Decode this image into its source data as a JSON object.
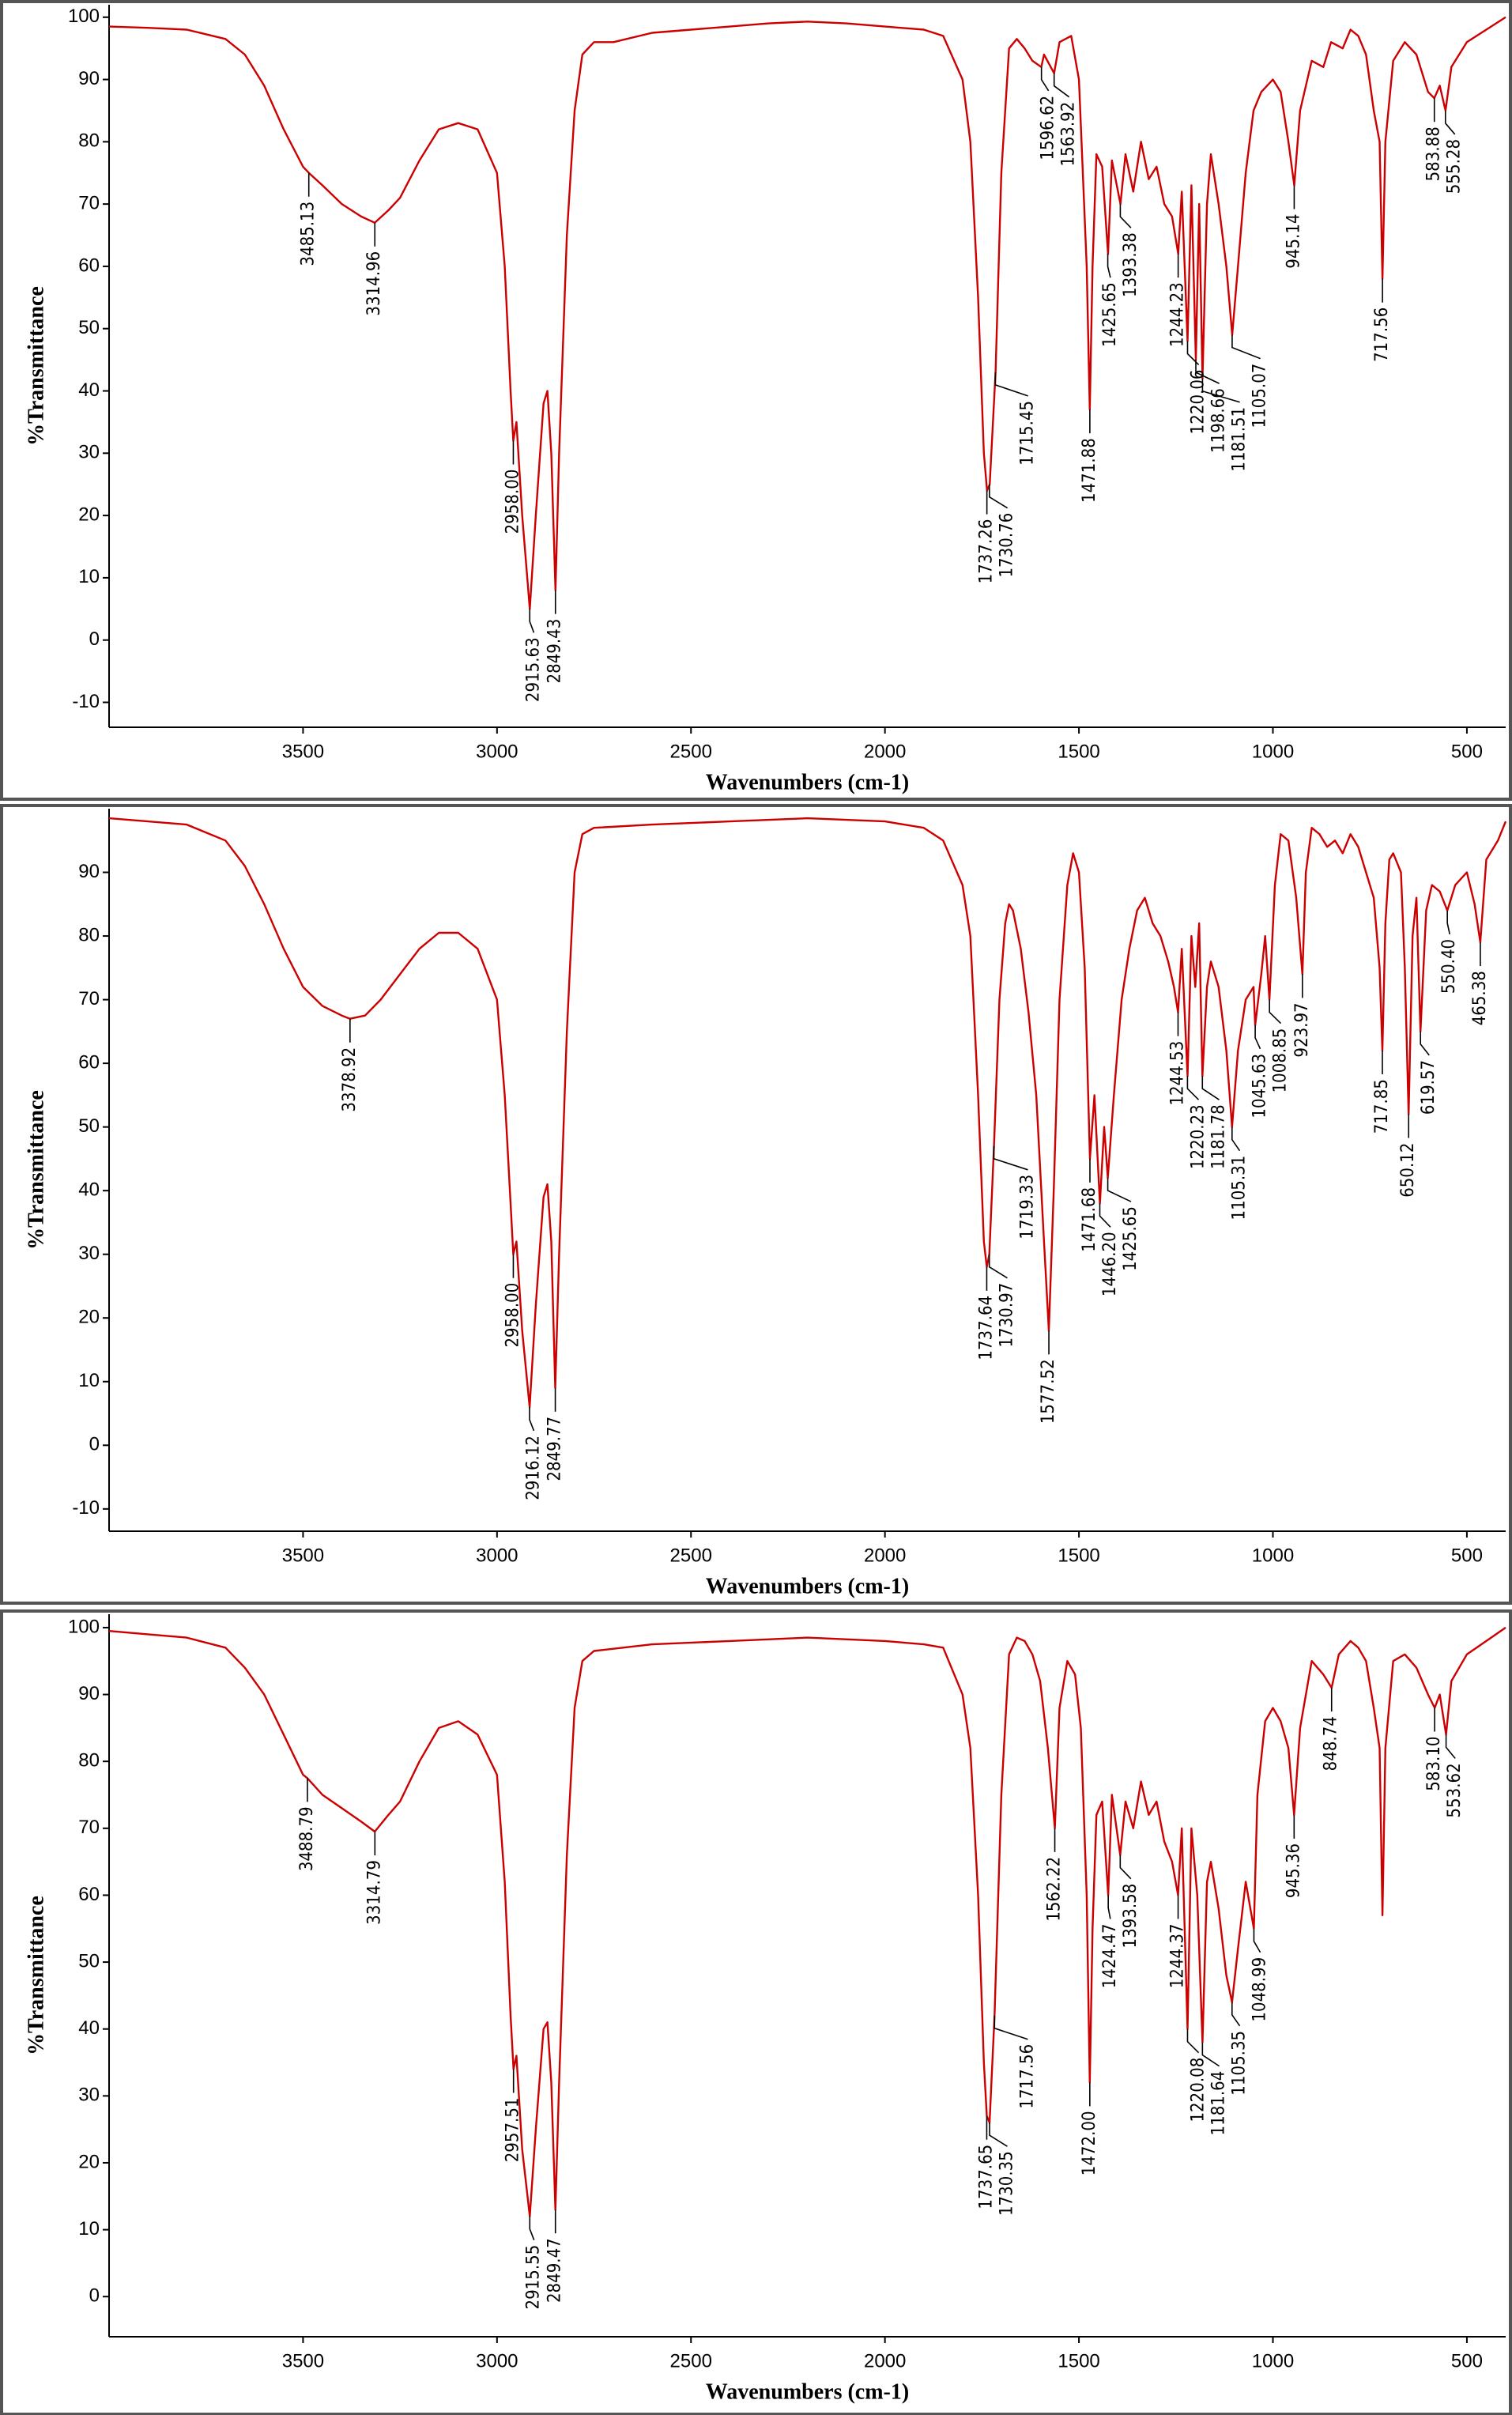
{
  "chart_data": [
    {
      "type": "line",
      "color": "#cc0000",
      "x_label": "Wavenumbers (cm-1)",
      "y_label": "%Transmittance",
      "xlim": [
        4000,
        400
      ],
      "xticks": [
        3500,
        3000,
        2500,
        2000,
        1500,
        1000,
        500
      ],
      "ylim": [
        -14,
        102
      ],
      "yticks": [
        -10,
        0,
        10,
        20,
        30,
        40,
        50,
        60,
        70,
        80,
        90,
        100
      ],
      "x": [
        4000,
        3900,
        3800,
        3700,
        3650,
        3600,
        3550,
        3500,
        3485,
        3450,
        3400,
        3350,
        3315,
        3280,
        3250,
        3200,
        3150,
        3100,
        3050,
        3000,
        2980,
        2965,
        2958,
        2950,
        2935,
        2915.6,
        2900,
        2880,
        2870,
        2860,
        2849.4,
        2840,
        2820,
        2800,
        2780,
        2750,
        2700,
        2600,
        2500,
        2400,
        2300,
        2200,
        2100,
        2000,
        1900,
        1850,
        1800,
        1780,
        1760,
        1745,
        1737,
        1730,
        1715,
        1700,
        1680,
        1660,
        1640,
        1620,
        1597,
        1590,
        1564,
        1550,
        1520,
        1500,
        1480,
        1472,
        1465,
        1455,
        1440,
        1425,
        1415,
        1393,
        1380,
        1360,
        1340,
        1320,
        1300,
        1280,
        1260,
        1244,
        1235,
        1220,
        1210,
        1198.7,
        1190,
        1181.5,
        1170,
        1160,
        1140,
        1120,
        1105,
        1090,
        1070,
        1050,
        1030,
        1000,
        980,
        960,
        945,
        930,
        900,
        870,
        850,
        820,
        800,
        780,
        760,
        740,
        725,
        717.6,
        710,
        690,
        660,
        630,
        600,
        584,
        570,
        555,
        540,
        500,
        450,
        400
      ],
      "values": [
        98.5,
        98.3,
        98,
        96.5,
        94,
        89,
        82,
        76,
        75,
        73,
        70,
        68,
        67,
        69,
        71,
        77,
        82,
        83,
        82,
        75,
        60,
        40,
        32,
        35,
        20,
        5,
        20,
        38,
        40,
        30,
        8,
        30,
        65,
        85,
        94,
        96,
        96,
        97.5,
        98,
        98.5,
        99,
        99.3,
        99,
        98.5,
        98,
        97,
        90,
        80,
        55,
        30,
        24,
        25,
        43,
        75,
        95,
        96.5,
        95,
        93,
        92,
        94,
        91,
        96,
        97,
        90,
        60,
        37,
        60,
        78,
        76,
        62,
        77,
        70,
        78,
        72,
        80,
        74,
        76,
        70,
        68,
        62,
        72,
        48,
        73,
        45,
        70,
        42,
        70,
        78,
        70,
        60,
        49,
        60,
        75,
        85,
        88,
        90,
        88,
        80,
        73,
        85,
        93,
        92,
        96,
        95,
        98,
        97,
        94,
        85,
        80,
        58,
        80,
        93,
        96,
        94,
        88,
        87,
        89,
        85,
        92,
        96,
        98,
        100
      ],
      "annotations": [
        {
          "text": "3485.13",
          "x": 3485.13,
          "y": 75
        },
        {
          "text": "3314.96",
          "x": 3314.96,
          "y": 67
        },
        {
          "text": "2958.00",
          "x": 2958,
          "y": 32
        },
        {
          "text": "2915.63",
          "x": 2915.63,
          "y": 5
        },
        {
          "text": "2849.43",
          "x": 2849.43,
          "y": 8
        },
        {
          "text": "1737.26",
          "x": 1737.26,
          "y": 24
        },
        {
          "text": "1730.76",
          "x": 1730.76,
          "y": 25
        },
        {
          "text": "1715.45",
          "x": 1715.45,
          "y": 43
        },
        {
          "text": "1596.62",
          "x": 1596.62,
          "y": 92
        },
        {
          "text": "1563.92",
          "x": 1563.92,
          "y": 91
        },
        {
          "text": "1471.88",
          "x": 1471.88,
          "y": 37
        },
        {
          "text": "1425.65",
          "x": 1425.65,
          "y": 62
        },
        {
          "text": "1393.38",
          "x": 1393.38,
          "y": 70
        },
        {
          "text": "1244.23",
          "x": 1244.23,
          "y": 62
        },
        {
          "text": "1220.06",
          "x": 1220.06,
          "y": 48
        },
        {
          "text": "1198.66",
          "x": 1198.66,
          "y": 45
        },
        {
          "text": "1181.51",
          "x": 1181.51,
          "y": 42
        },
        {
          "text": "1105.07",
          "x": 1105.07,
          "y": 49
        },
        {
          "text": "945.14",
          "x": 945.14,
          "y": 73
        },
        {
          "text": "717.56",
          "x": 717.56,
          "y": 58
        },
        {
          "text": "583.88",
          "x": 583.88,
          "y": 87
        },
        {
          "text": "555.28",
          "x": 555.28,
          "y": 85
        }
      ]
    },
    {
      "type": "line",
      "color": "#cc0000",
      "x_label": "Wavenumbers (cm-1)",
      "y_label": "%Transmittance",
      "xlim": [
        4000,
        400
      ],
      "xticks": [
        3500,
        3000,
        2500,
        2000,
        1500,
        1000,
        500
      ],
      "ylim": [
        -13.5,
        100
      ],
      "yticks": [
        -10,
        0,
        10,
        20,
        30,
        40,
        50,
        60,
        70,
        80,
        90
      ],
      "x": [
        4000,
        3900,
        3800,
        3700,
        3650,
        3600,
        3550,
        3500,
        3450,
        3400,
        3379,
        3340,
        3300,
        3250,
        3200,
        3150,
        3100,
        3050,
        3000,
        2980,
        2965,
        2958,
        2950,
        2935,
        2916,
        2900,
        2880,
        2870,
        2860,
        2850,
        2840,
        2820,
        2800,
        2780,
        2750,
        2600,
        2400,
        2200,
        2000,
        1900,
        1850,
        1800,
        1780,
        1760,
        1745,
        1737.6,
        1731,
        1719,
        1705,
        1690,
        1680,
        1670,
        1650,
        1630,
        1610,
        1590,
        1577.5,
        1565,
        1550,
        1530,
        1515,
        1500,
        1485,
        1471.7,
        1460,
        1446,
        1435,
        1425.6,
        1410,
        1390,
        1370,
        1350,
        1330,
        1310,
        1290,
        1270,
        1255,
        1244.5,
        1235,
        1220,
        1210,
        1200,
        1190,
        1181.8,
        1170,
        1160,
        1140,
        1120,
        1105.3,
        1090,
        1070,
        1050,
        1045.6,
        1030,
        1020,
        1008.9,
        995,
        980,
        960,
        940,
        924,
        915,
        900,
        880,
        860,
        840,
        820,
        800,
        780,
        760,
        740,
        725,
        717.9,
        710,
        700,
        690,
        670,
        660,
        650.1,
        640,
        630,
        619.6,
        605,
        590,
        570,
        550.4,
        530,
        500,
        480,
        465.4,
        450,
        420,
        400
      ],
      "values": [
        98.5,
        98,
        97.5,
        95,
        91,
        85,
        78,
        72,
        69,
        67.5,
        67,
        67.5,
        70,
        74,
        78,
        80.5,
        80.5,
        78,
        70,
        55,
        38,
        30,
        32,
        18,
        6,
        22,
        39,
        41,
        32,
        9,
        30,
        65,
        90,
        96,
        97,
        97.5,
        98,
        98.5,
        98,
        97,
        95,
        88,
        80,
        55,
        32,
        28,
        30,
        47,
        70,
        82,
        85,
        84,
        78,
        68,
        55,
        32,
        18,
        40,
        70,
        88,
        93,
        90,
        75,
        45,
        55,
        38,
        50,
        42,
        55,
        70,
        78,
        84,
        86,
        82,
        80,
        76,
        72,
        68,
        78,
        58,
        80,
        72,
        82,
        58,
        72,
        76,
        72,
        62,
        50,
        62,
        70,
        72,
        66,
        74,
        80,
        70,
        88,
        96,
        95,
        86,
        74,
        90,
        97,
        96,
        94,
        95,
        93,
        96,
        94,
        90,
        86,
        75,
        62,
        82,
        92,
        93,
        90,
        75,
        52,
        80,
        86,
        65,
        84,
        88,
        87,
        84,
        88,
        90,
        85,
        79,
        92,
        95,
        98
      ],
      "annotations": [
        {
          "text": "3378.92",
          "x": 3378.92,
          "y": 67
        },
        {
          "text": "2958.00",
          "x": 2958,
          "y": 30
        },
        {
          "text": "2916.12",
          "x": 2916.12,
          "y": 6
        },
        {
          "text": "2849.77",
          "x": 2849.77,
          "y": 9
        },
        {
          "text": "1737.64",
          "x": 1737.64,
          "y": 28
        },
        {
          "text": "1730.97",
          "x": 1730.97,
          "y": 30
        },
        {
          "text": "1719.33",
          "x": 1719.33,
          "y": 47
        },
        {
          "text": "1577.52",
          "x": 1577.52,
          "y": 18
        },
        {
          "text": "1471.68",
          "x": 1471.68,
          "y": 45
        },
        {
          "text": "1446.20",
          "x": 1446.2,
          "y": 38
        },
        {
          "text": "1425.65",
          "x": 1425.65,
          "y": 42
        },
        {
          "text": "1244.53",
          "x": 1244.53,
          "y": 68
        },
        {
          "text": "1220.23",
          "x": 1220.23,
          "y": 58
        },
        {
          "text": "1181.78",
          "x": 1181.78,
          "y": 58
        },
        {
          "text": "1105.31",
          "x": 1105.31,
          "y": 50
        },
        {
          "text": "1045.63",
          "x": 1045.63,
          "y": 66
        },
        {
          "text": "1008.85",
          "x": 1008.85,
          "y": 70
        },
        {
          "text": "923.97",
          "x": 923.97,
          "y": 74
        },
        {
          "text": "717.85",
          "x": 717.85,
          "y": 62
        },
        {
          "text": "650.12",
          "x": 650.12,
          "y": 52
        },
        {
          "text": "619.57",
          "x": 619.57,
          "y": 65
        },
        {
          "text": "550.40",
          "x": 550.4,
          "y": 84
        },
        {
          "text": "465.38",
          "x": 465.38,
          "y": 79
        }
      ]
    },
    {
      "type": "line",
      "color": "#cc0000",
      "x_label": "Wavenumbers (cm-1)",
      "y_label": "%Transmittance",
      "xlim": [
        4000,
        400
      ],
      "xticks": [
        3500,
        3000,
        2500,
        2000,
        1500,
        1000,
        500
      ],
      "ylim": [
        -6,
        102
      ],
      "yticks": [
        0,
        10,
        20,
        30,
        40,
        50,
        60,
        70,
        80,
        90,
        100
      ],
      "x": [
        4000,
        3900,
        3800,
        3700,
        3650,
        3600,
        3550,
        3500,
        3489,
        3450,
        3400,
        3350,
        3315,
        3280,
        3250,
        3200,
        3150,
        3100,
        3050,
        3000,
        2980,
        2965,
        2957.5,
        2950,
        2935,
        2915.6,
        2900,
        2880,
        2870,
        2860,
        2849.5,
        2840,
        2820,
        2800,
        2780,
        2750,
        2600,
        2400,
        2200,
        2000,
        1900,
        1850,
        1800,
        1780,
        1760,
        1745,
        1737.6,
        1730.3,
        1717.6,
        1700,
        1680,
        1660,
        1640,
        1620,
        1600,
        1580,
        1562.2,
        1550,
        1530,
        1510,
        1495,
        1480,
        1472,
        1465,
        1455,
        1440,
        1424.5,
        1415,
        1393.6,
        1380,
        1360,
        1340,
        1320,
        1300,
        1280,
        1260,
        1244.4,
        1235,
        1220,
        1210,
        1195,
        1181.6,
        1170,
        1160,
        1140,
        1120,
        1105.4,
        1090,
        1070,
        1049,
        1040,
        1020,
        1000,
        980,
        960,
        945.4,
        930,
        900,
        870,
        848.7,
        830,
        800,
        780,
        760,
        740,
        725,
        717.6,
        710,
        690,
        660,
        630,
        600,
        583,
        570,
        553.6,
        540,
        500,
        450,
        400
      ],
      "values": [
        99.5,
        99,
        98.5,
        97,
        94,
        90,
        84,
        78,
        77.5,
        75,
        73,
        71,
        69.5,
        72,
        74,
        80,
        85,
        86,
        84,
        78,
        62,
        42,
        34,
        36,
        22,
        12,
        25,
        40,
        41,
        32,
        13,
        32,
        66,
        88,
        95,
        96.5,
        97.5,
        98,
        98.5,
        98,
        97.5,
        97,
        90,
        82,
        60,
        35,
        27,
        26,
        42,
        75,
        96,
        98.5,
        98,
        96,
        92,
        82,
        70,
        88,
        95,
        93,
        85,
        60,
        32,
        55,
        72,
        74,
        60,
        75,
        66,
        74,
        70,
        77,
        72,
        74,
        68,
        65,
        60,
        70,
        40,
        70,
        60,
        38,
        62,
        65,
        58,
        48,
        44,
        52,
        62,
        55,
        75,
        86,
        88,
        86,
        82,
        72,
        85,
        95,
        93,
        91,
        96,
        98,
        97,
        95,
        88,
        82,
        57,
        82,
        95,
        96,
        94,
        90,
        88,
        90,
        84,
        92,
        96,
        98,
        100
      ],
      "annotations": [
        {
          "text": "3488.79",
          "x": 3488.79,
          "y": 77.5
        },
        {
          "text": "3314.79",
          "x": 3314.79,
          "y": 69.5
        },
        {
          "text": "2957.51",
          "x": 2957.51,
          "y": 34
        },
        {
          "text": "2915.55",
          "x": 2915.55,
          "y": 12
        },
        {
          "text": "2849.47",
          "x": 2849.47,
          "y": 13
        },
        {
          "text": "1737.65",
          "x": 1737.65,
          "y": 27
        },
        {
          "text": "1730.35",
          "x": 1730.35,
          "y": 26
        },
        {
          "text": "1717.56",
          "x": 1717.56,
          "y": 42
        },
        {
          "text": "1562.22",
          "x": 1562.22,
          "y": 70
        },
        {
          "text": "1472.00",
          "x": 1472,
          "y": 32
        },
        {
          "text": "1424.47",
          "x": 1424.47,
          "y": 60
        },
        {
          "text": "1393.58",
          "x": 1393.58,
          "y": 66
        },
        {
          "text": "1244.37",
          "x": 1244.37,
          "y": 60
        },
        {
          "text": "1220.08",
          "x": 1220.08,
          "y": 40
        },
        {
          "text": "1181.64",
          "x": 1181.64,
          "y": 38
        },
        {
          "text": "1105.35",
          "x": 1105.35,
          "y": 44
        },
        {
          "text": "1048.99",
          "x": 1048.99,
          "y": 55
        },
        {
          "text": "945.36",
          "x": 945.36,
          "y": 72
        },
        {
          "text": "848.74",
          "x": 848.74,
          "y": 91
        },
        {
          "text": "583.10",
          "x": 583.1,
          "y": 88
        },
        {
          "text": "553.62",
          "x": 553.62,
          "y": 84
        }
      ]
    }
  ]
}
